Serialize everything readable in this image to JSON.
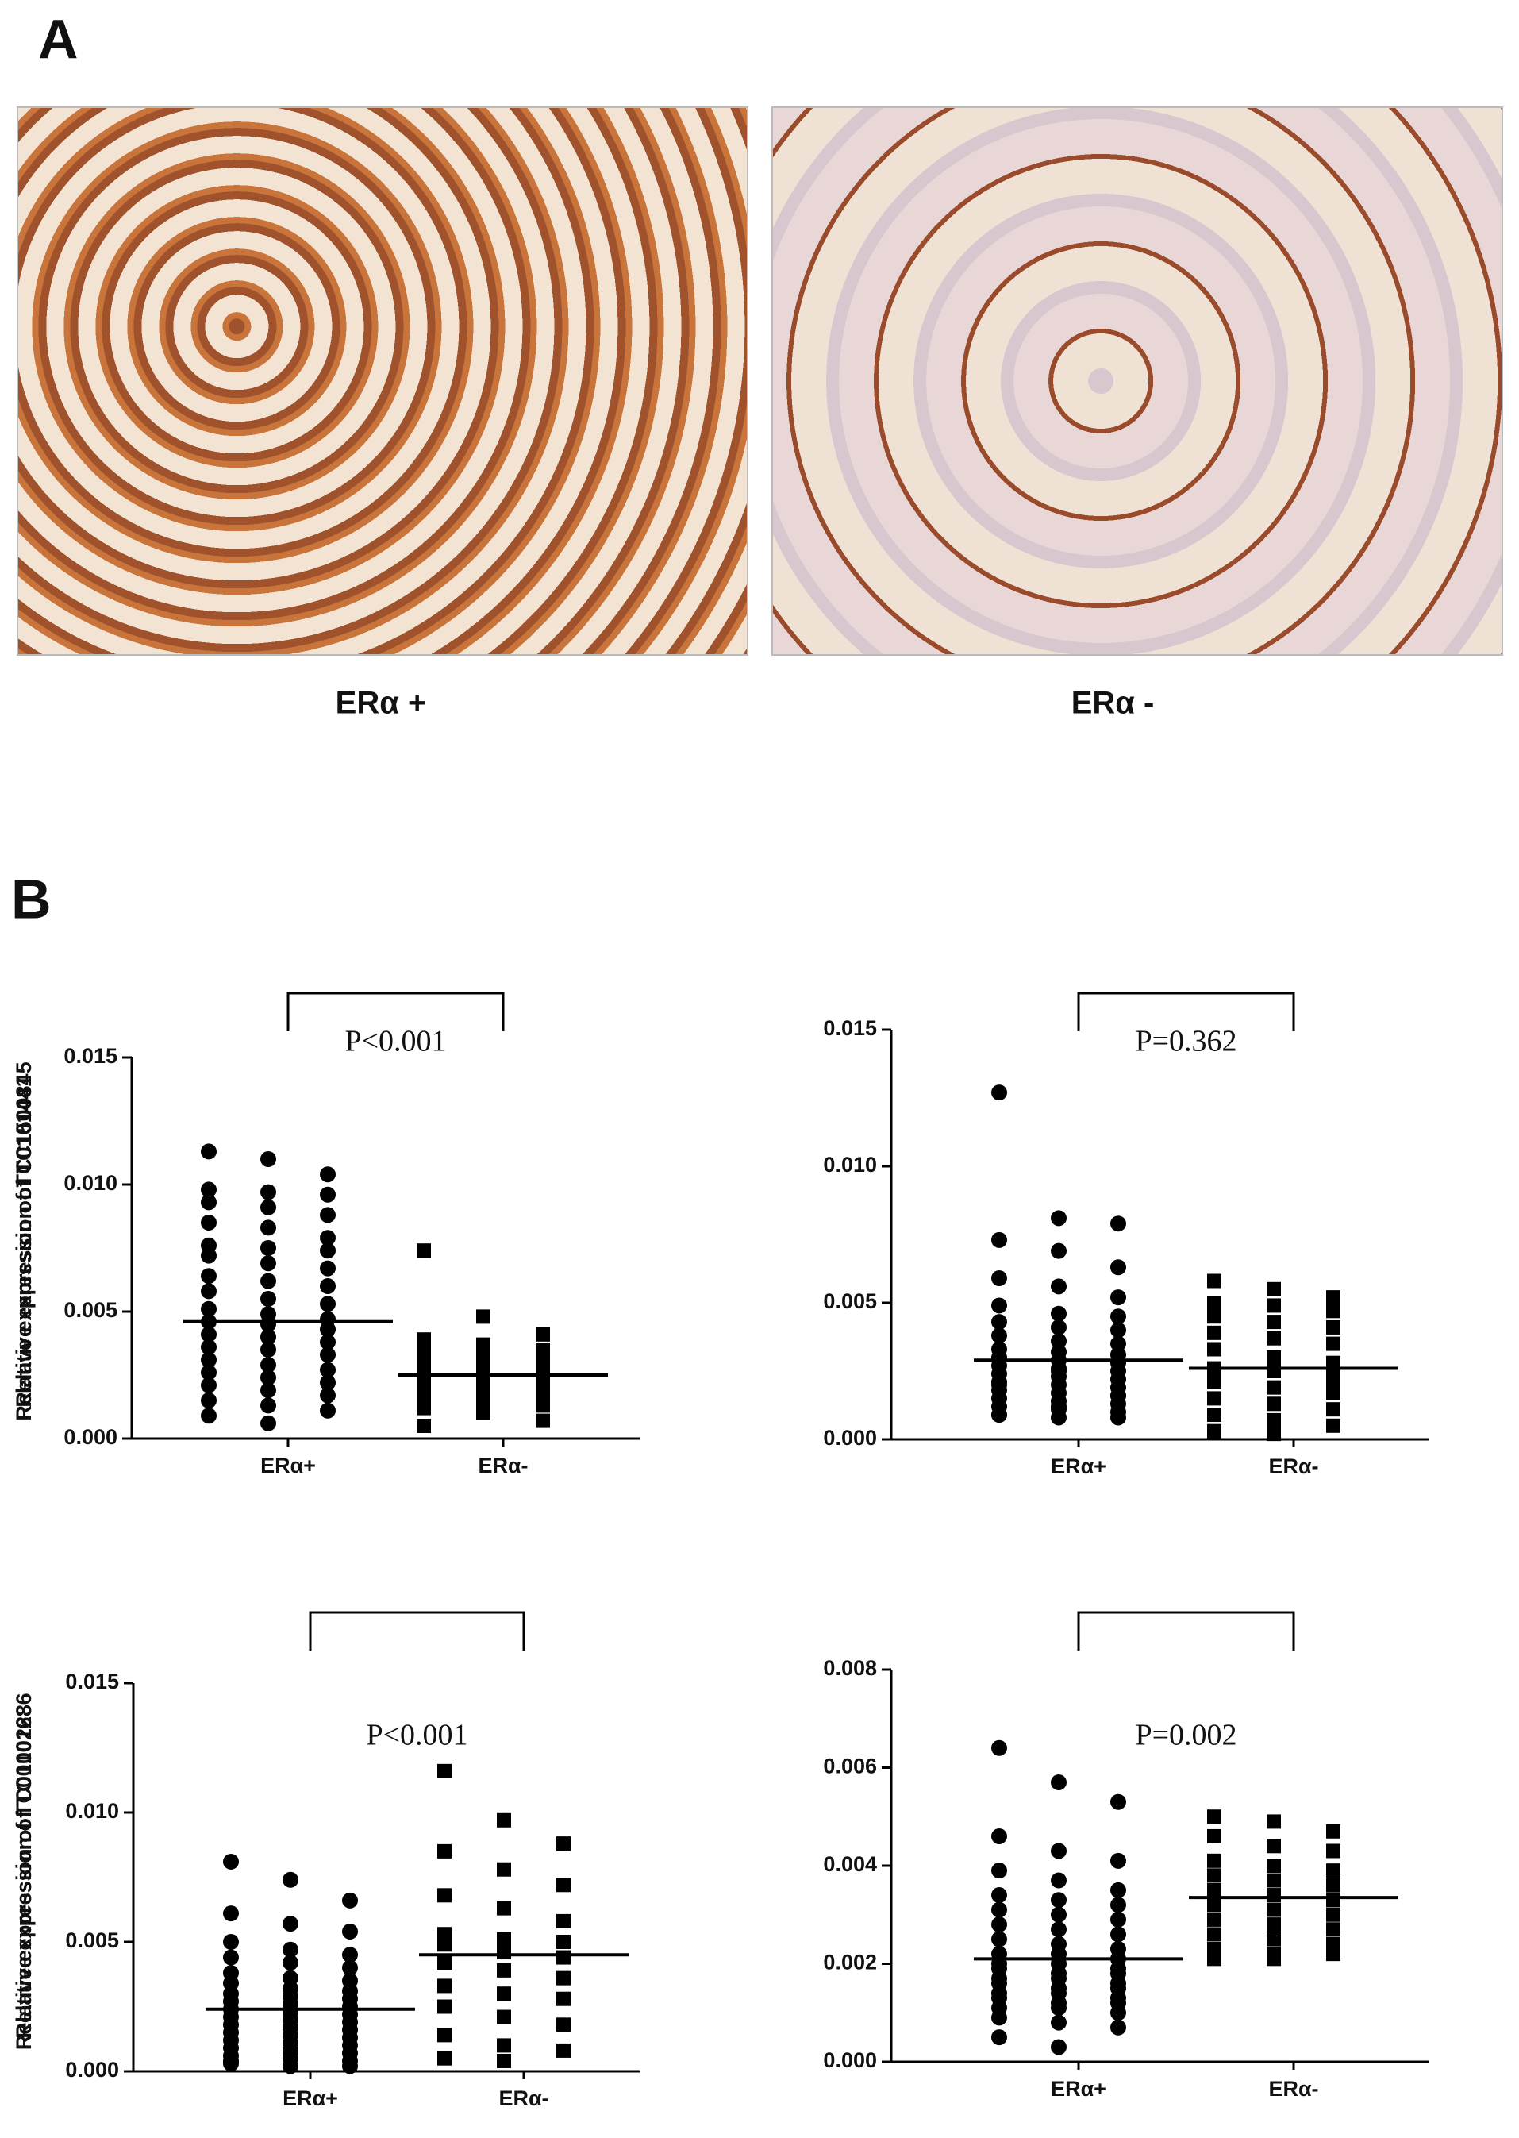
{
  "panels": {
    "a": {
      "label": "A",
      "images": [
        {
          "caption": "ERα +"
        },
        {
          "caption": "ERα -"
        }
      ]
    },
    "b": {
      "label": "B"
    }
  },
  "chart_data": [
    {
      "type": "dot",
      "ylabel": "Relative expression of TC0101441",
      "annotation": "P<0.001",
      "categories": [
        "ERα+",
        "ERα-"
      ],
      "groups": [
        {
          "marker": "circle",
          "median": 0.0046,
          "values": [
            0.0113,
            0.011,
            0.0104,
            0.0098,
            0.0097,
            0.0096,
            0.0093,
            0.0091,
            0.0088,
            0.0085,
            0.0083,
            0.0079,
            0.0076,
            0.0075,
            0.0074,
            0.0072,
            0.0069,
            0.0067,
            0.0064,
            0.0062,
            0.006,
            0.0058,
            0.0055,
            0.0053,
            0.0051,
            0.0049,
            0.0047,
            0.0046,
            0.0045,
            0.0043,
            0.0041,
            0.004,
            0.0038,
            0.0036,
            0.0035,
            0.0033,
            0.0031,
            0.0029,
            0.0027,
            0.0026,
            0.0024,
            0.0022,
            0.0021,
            0.0019,
            0.0017,
            0.0015,
            0.0013,
            0.0011,
            0.0009,
            0.0006
          ]
        },
        {
          "marker": "square",
          "median": 0.0025,
          "values": [
            0.0074,
            0.0048,
            0.0041,
            0.0039,
            0.0037,
            0.0035,
            0.0034,
            0.0032,
            0.003,
            0.0029,
            0.0028,
            0.0027,
            0.0026,
            0.0025,
            0.0024,
            0.0023,
            0.0022,
            0.0021,
            0.002,
            0.0019,
            0.0018,
            0.0016,
            0.0014,
            0.0013,
            0.0012,
            0.001,
            0.0007,
            0.0005
          ]
        }
      ],
      "ylim": [
        0,
        0.015
      ],
      "yticks": [
        {
          "value": 0,
          "label": "0.000"
        },
        {
          "value": 0.005,
          "label": "0.005"
        },
        {
          "value": 0.01,
          "label": "0.010"
        },
        {
          "value": 0.015,
          "label": "0.015"
        }
      ]
    },
    {
      "type": "dot",
      "ylabel": "Relative expression of TC1500845",
      "annotation": "P=0.362",
      "categories": [
        "ERα+",
        "ERα-"
      ],
      "groups": [
        {
          "marker": "circle",
          "median": 0.0029,
          "values": [
            0.0127,
            0.0081,
            0.0079,
            0.0073,
            0.0069,
            0.0063,
            0.0059,
            0.0056,
            0.0052,
            0.0049,
            0.0046,
            0.0045,
            0.0043,
            0.0041,
            0.004,
            0.0038,
            0.0036,
            0.0035,
            0.0033,
            0.0032,
            0.0031,
            0.003,
            0.0029,
            0.0028,
            0.0027,
            0.0026,
            0.0025,
            0.0024,
            0.0023,
            0.0022,
            0.0021,
            0.002,
            0.0019,
            0.0018,
            0.0017,
            0.0016,
            0.0015,
            0.0014,
            0.0013,
            0.0012,
            0.0011,
            0.001,
            0.0009,
            0.0008,
            0.0008,
            0.0009,
            0.0012,
            0.0016,
            0.002,
            0.0025
          ]
        },
        {
          "marker": "square",
          "median": 0.0026,
          "values": [
            0.0058,
            0.0055,
            0.0052,
            0.005,
            0.0049,
            0.0047,
            0.0045,
            0.0043,
            0.0041,
            0.0039,
            0.0037,
            0.0035,
            0.0033,
            0.003,
            0.0028,
            0.0026,
            0.0025,
            0.0023,
            0.0021,
            0.0019,
            0.0017,
            0.0015,
            0.0013,
            0.0011,
            0.0009,
            0.0007,
            0.0005,
            0.0003,
            0.0002,
            0.0022
          ]
        }
      ],
      "ylim": [
        0,
        0.015
      ],
      "yticks": [
        {
          "value": 0,
          "label": "0.000"
        },
        {
          "value": 0.005,
          "label": "0.005"
        },
        {
          "value": 0.01,
          "label": "0.010"
        },
        {
          "value": 0.015,
          "label": "0.015"
        }
      ]
    },
    {
      "type": "dot",
      "ylabel": "Relative expression of TC0100223",
      "annotation": "P<0.001",
      "categories": [
        "ERα+",
        "ERα-"
      ],
      "groups": [
        {
          "marker": "circle",
          "median": 0.0024,
          "values": [
            0.0081,
            0.0074,
            0.0066,
            0.0061,
            0.0057,
            0.0054,
            0.005,
            0.0047,
            0.0045,
            0.0044,
            0.0042,
            0.004,
            0.0038,
            0.0036,
            0.0035,
            0.0034,
            0.0032,
            0.0031,
            0.003,
            0.0029,
            0.0028,
            0.0027,
            0.0026,
            0.0025,
            0.0024,
            0.0023,
            0.0022,
            0.0021,
            0.002,
            0.0019,
            0.0018,
            0.0017,
            0.0016,
            0.0015,
            0.0014,
            0.0013,
            0.0012,
            0.0011,
            0.001,
            0.0009,
            0.0008,
            0.0007,
            0.0006,
            0.0005,
            0.0004,
            0.0003,
            0.0002,
            0.0002,
            0.0004,
            0.0007
          ]
        },
        {
          "marker": "square",
          "median": 0.0045,
          "values": [
            0.0116,
            0.0097,
            0.0088,
            0.0085,
            0.0078,
            0.0072,
            0.0068,
            0.0063,
            0.0058,
            0.0053,
            0.0051,
            0.005,
            0.0049,
            0.0046,
            0.0044,
            0.0042,
            0.0039,
            0.0036,
            0.0033,
            0.003,
            0.0028,
            0.0025,
            0.0021,
            0.0018,
            0.0014,
            0.001,
            0.0008,
            0.0005,
            0.0004
          ]
        }
      ],
      "ylim": [
        0,
        0.015
      ],
      "yticks": [
        {
          "value": 0,
          "label": "0.000"
        },
        {
          "value": 0.005,
          "label": "0.005"
        },
        {
          "value": 0.01,
          "label": "0.010"
        },
        {
          "value": 0.015,
          "label": "0.015"
        }
      ]
    },
    {
      "type": "dot",
      "ylabel": "Relative expression of TC0101686",
      "annotation": "P=0.002",
      "categories": [
        "ERα+",
        "ERα-"
      ],
      "groups": [
        {
          "marker": "circle",
          "median": 0.0021,
          "values": [
            0.0064,
            0.0057,
            0.0053,
            0.0046,
            0.0043,
            0.0041,
            0.0039,
            0.0037,
            0.0035,
            0.0034,
            0.0033,
            0.0032,
            0.0031,
            0.003,
            0.0029,
            0.0028,
            0.0027,
            0.0026,
            0.0025,
            0.0024,
            0.0023,
            0.0022,
            0.0022,
            0.0021,
            0.002,
            0.002,
            0.0019,
            0.0019,
            0.0018,
            0.0018,
            0.0017,
            0.0017,
            0.0016,
            0.0016,
            0.0015,
            0.0015,
            0.0014,
            0.0014,
            0.0013,
            0.0013,
            0.0012,
            0.0012,
            0.0011,
            0.0011,
            0.001,
            0.0009,
            0.0008,
            0.0007,
            0.0005,
            0.0003
          ]
        },
        {
          "marker": "square",
          "median": 0.00335,
          "values": [
            0.005,
            0.0049,
            0.0047,
            0.0046,
            0.0044,
            0.0043,
            0.0041,
            0.004,
            0.0039,
            0.0038,
            0.0037,
            0.0036,
            0.0035,
            0.0034,
            0.0033,
            0.0032,
            0.0031,
            0.003,
            0.0029,
            0.0028,
            0.0027,
            0.0026,
            0.0025,
            0.0024,
            0.0023,
            0.0022,
            0.0022,
            0.0021,
            0.0021
          ]
        }
      ],
      "ylim": [
        0,
        0.008
      ],
      "yticks": [
        {
          "value": 0,
          "label": "0.000"
        },
        {
          "value": 0.002,
          "label": "0.002"
        },
        {
          "value": 0.004,
          "label": "0.004"
        },
        {
          "value": 0.006,
          "label": "0.006"
        },
        {
          "value": 0.008,
          "label": "0.008"
        }
      ]
    }
  ]
}
